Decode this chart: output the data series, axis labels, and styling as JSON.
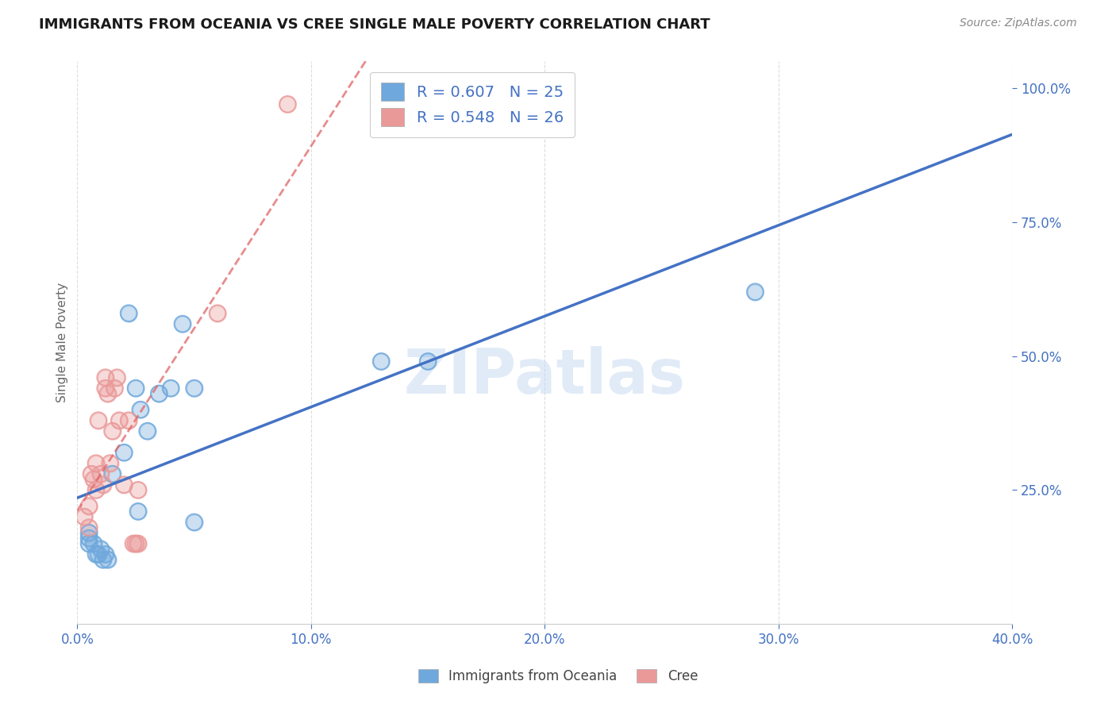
{
  "title": "IMMIGRANTS FROM OCEANIA VS CREE SINGLE MALE POVERTY CORRELATION CHART",
  "source": "Source: ZipAtlas.com",
  "ylabel": "Single Male Poverty",
  "legend_r1": "R = 0.607",
  "legend_n1": "N = 25",
  "legend_r2": "R = 0.548",
  "legend_n2": "N = 26",
  "blue_color": "#6fa8dc",
  "pink_color": "#ea9999",
  "blue_line_color": "#4472c4",
  "pink_line_color": "#e06666",
  "watermark": "ZIPatlas",
  "xlim": [
    0.0,
    0.4
  ],
  "ylim": [
    0.0,
    1.05
  ],
  "blue_scatter_x": [
    0.005,
    0.005,
    0.005,
    0.007,
    0.008,
    0.009,
    0.01,
    0.011,
    0.012,
    0.013,
    0.015,
    0.02,
    0.022,
    0.025,
    0.026,
    0.027,
    0.03,
    0.035,
    0.04,
    0.045,
    0.05,
    0.05,
    0.13,
    0.15,
    0.29
  ],
  "blue_scatter_y": [
    0.15,
    0.16,
    0.17,
    0.15,
    0.13,
    0.13,
    0.14,
    0.12,
    0.13,
    0.12,
    0.28,
    0.32,
    0.58,
    0.44,
    0.21,
    0.4,
    0.36,
    0.43,
    0.44,
    0.56,
    0.44,
    0.19,
    0.49,
    0.49,
    0.62
  ],
  "pink_scatter_x": [
    0.003,
    0.005,
    0.005,
    0.006,
    0.007,
    0.008,
    0.008,
    0.009,
    0.01,
    0.011,
    0.012,
    0.012,
    0.013,
    0.014,
    0.015,
    0.016,
    0.017,
    0.018,
    0.02,
    0.022,
    0.024,
    0.025,
    0.026,
    0.026,
    0.06,
    0.09
  ],
  "pink_scatter_y": [
    0.2,
    0.18,
    0.22,
    0.28,
    0.27,
    0.3,
    0.25,
    0.38,
    0.28,
    0.26,
    0.44,
    0.46,
    0.43,
    0.3,
    0.36,
    0.44,
    0.46,
    0.38,
    0.26,
    0.38,
    0.15,
    0.15,
    0.25,
    0.15,
    0.58,
    0.97
  ],
  "background_color": "#ffffff",
  "grid_color": "#d9d9d9",
  "x_ticks": [
    0.0,
    0.1,
    0.2,
    0.3,
    0.4
  ],
  "x_tick_labels": [
    "0.0%",
    "10.0%",
    "20.0%",
    "30.0%",
    "40.0%"
  ],
  "y_ticks": [
    0.25,
    0.5,
    0.75,
    1.0
  ],
  "y_tick_labels": [
    "25.0%",
    "50.0%",
    "75.0%",
    "100.0%"
  ],
  "legend_label_blue": "Immigrants from Oceania",
  "legend_label_pink": "Cree"
}
